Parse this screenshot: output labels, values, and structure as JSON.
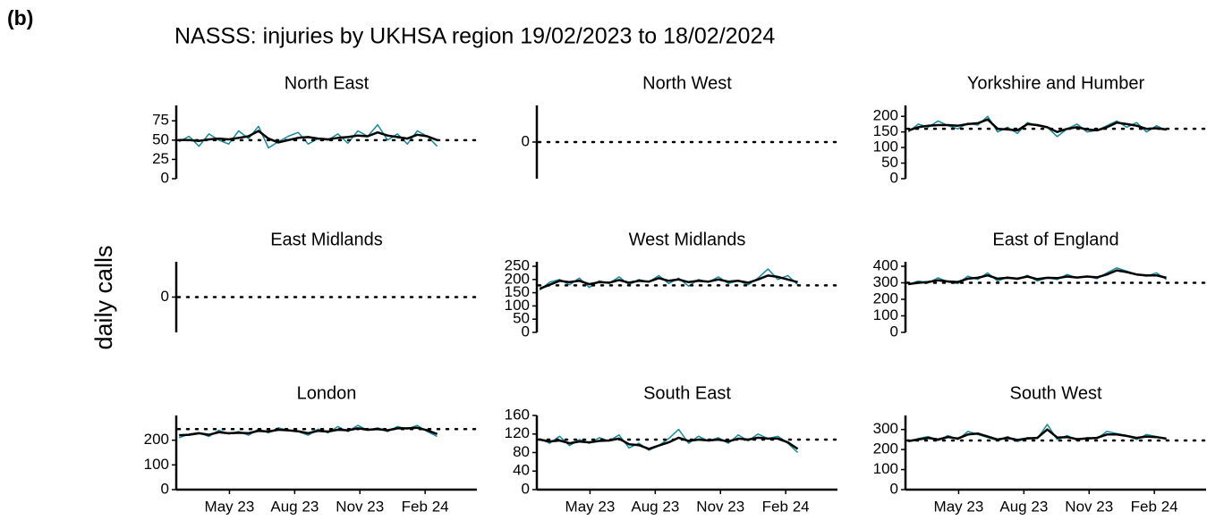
{
  "panel_label": "(b)",
  "title": "NASSS: injuries by UKHSA region 19/02/2023 to 18/02/2024",
  "y_label": "daily calls",
  "x": [
    0,
    14,
    28,
    42,
    56,
    70,
    84,
    98,
    112,
    126,
    140,
    154,
    168,
    182,
    196,
    210,
    224,
    238,
    252,
    266,
    280,
    294,
    308,
    322,
    336,
    350,
    364
  ],
  "xlim": [
    -4,
    420
  ],
  "xticks": [
    {
      "value": 71,
      "label": "May 23"
    },
    {
      "value": 163,
      "label": "Aug 23"
    },
    {
      "value": 255,
      "label": "Nov 23"
    },
    {
      "value": 347,
      "label": "Feb 24"
    }
  ],
  "chart_data": [
    {
      "type": "line",
      "title": "North East",
      "ylim": [
        0,
        95
      ],
      "yticks": [
        0,
        25,
        50,
        75
      ],
      "baseline": 50,
      "series": [
        {
          "color": "#1a8799",
          "values": [
            48,
            55,
            42,
            58,
            50,
            45,
            62,
            52,
            68,
            40,
            48,
            55,
            60,
            45,
            52,
            50,
            58,
            46,
            62,
            55,
            70,
            50,
            58,
            45,
            62,
            55,
            42
          ]
        },
        {
          "color": "#000000",
          "values": [
            50,
            50,
            49,
            51,
            52,
            51,
            53,
            55,
            62,
            52,
            47,
            50,
            53,
            54,
            52,
            51,
            53,
            54,
            56,
            55,
            60,
            56,
            54,
            52,
            57,
            55,
            50
          ]
        }
      ]
    },
    {
      "type": "line",
      "title": "North West",
      "ylim": [
        -1,
        1
      ],
      "yticks": [
        0
      ],
      "baseline": 0,
      "series": []
    },
    {
      "type": "line",
      "title": "Yorkshire and Humber",
      "ylim": [
        0,
        235
      ],
      "yticks": [
        0,
        50,
        100,
        150,
        200
      ],
      "baseline": 160,
      "series": [
        {
          "color": "#1a8799",
          "values": [
            150,
            175,
            165,
            185,
            170,
            160,
            178,
            172,
            200,
            150,
            165,
            145,
            180,
            170,
            165,
            135,
            160,
            175,
            150,
            155,
            170,
            185,
            165,
            180,
            150,
            170,
            155
          ]
        },
        {
          "color": "#000000",
          "values": [
            155,
            165,
            170,
            172,
            172,
            170,
            175,
            178,
            190,
            160,
            158,
            155,
            175,
            172,
            165,
            150,
            160,
            165,
            158,
            155,
            165,
            180,
            175,
            170,
            160,
            162,
            158
          ]
        }
      ]
    },
    {
      "type": "line",
      "title": "East Midlands",
      "ylim": [
        -1,
        1
      ],
      "yticks": [
        0
      ],
      "baseline": 0,
      "series": []
    },
    {
      "type": "line",
      "title": "West Midlands",
      "ylim": [
        0,
        267
      ],
      "yticks": [
        0,
        50,
        100,
        150,
        200,
        250
      ],
      "baseline": 178,
      "series": [
        {
          "color": "#1a8799",
          "values": [
            160,
            190,
            200,
            180,
            205,
            170,
            195,
            185,
            210,
            180,
            200,
            190,
            215,
            185,
            205,
            175,
            200,
            190,
            210,
            185,
            195,
            180,
            205,
            240,
            200,
            215,
            180
          ]
        },
        {
          "color": "#000000",
          "values": [
            165,
            180,
            195,
            190,
            195,
            182,
            190,
            188,
            198,
            188,
            195,
            192,
            205,
            195,
            200,
            190,
            195,
            192,
            200,
            192,
            195,
            188,
            200,
            215,
            210,
            200,
            190
          ]
        }
      ]
    },
    {
      "type": "line",
      "title": "East of England",
      "ylim": [
        0,
        427
      ],
      "yticks": [
        0,
        100,
        200,
        300,
        400
      ],
      "baseline": 300,
      "series": [
        {
          "color": "#1a8799",
          "values": [
            290,
            310,
            300,
            330,
            305,
            295,
            340,
            320,
            360,
            310,
            335,
            320,
            345,
            310,
            330,
            320,
            350,
            330,
            340,
            325,
            360,
            390,
            370,
            350,
            340,
            360,
            320
          ]
        },
        {
          "color": "#000000",
          "values": [
            292,
            300,
            305,
            315,
            308,
            305,
            325,
            330,
            345,
            325,
            330,
            325,
            338,
            322,
            330,
            328,
            338,
            332,
            338,
            333,
            350,
            375,
            365,
            350,
            345,
            345,
            330
          ]
        }
      ]
    },
    {
      "type": "line",
      "title": "London",
      "ylim": [
        0,
        300
      ],
      "yticks": [
        0,
        100,
        200
      ],
      "baseline": 245,
      "series": [
        {
          "color": "#1a8799",
          "values": [
            210,
            225,
            230,
            215,
            240,
            225,
            235,
            220,
            245,
            230,
            250,
            240,
            235,
            220,
            245,
            230,
            255,
            235,
            260,
            240,
            250,
            235,
            255,
            245,
            260,
            235,
            215
          ]
        },
        {
          "color": "#000000",
          "values": [
            220,
            222,
            228,
            222,
            232,
            228,
            230,
            228,
            238,
            235,
            242,
            240,
            236,
            228,
            238,
            235,
            242,
            240,
            248,
            242,
            245,
            240,
            248,
            248,
            250,
            240,
            225
          ]
        }
      ]
    },
    {
      "type": "line",
      "title": "South East",
      "ylim": [
        0,
        160
      ],
      "yticks": [
        0,
        40,
        80,
        120,
        160
      ],
      "baseline": 108,
      "series": [
        {
          "color": "#1a8799",
          "values": [
            110,
            100,
            115,
            95,
            108,
            100,
            112,
            105,
            118,
            90,
            100,
            85,
            95,
            110,
            130,
            100,
            115,
            105,
            112,
            100,
            118,
            105,
            120,
            110,
            115,
            100,
            80
          ]
        },
        {
          "color": "#000000",
          "values": [
            108,
            104,
            106,
            100,
            104,
            102,
            105,
            106,
            110,
            98,
            96,
            88,
            95,
            102,
            112,
            105,
            108,
            106,
            108,
            104,
            110,
            108,
            112,
            110,
            110,
            102,
            88
          ]
        }
      ]
    },
    {
      "type": "line",
      "title": "South West",
      "ylim": [
        0,
        370
      ],
      "yticks": [
        0,
        100,
        200,
        300
      ],
      "baseline": 245,
      "series": [
        {
          "color": "#1a8799",
          "values": [
            240,
            255,
            265,
            245,
            270,
            250,
            290,
            275,
            260,
            245,
            265,
            240,
            260,
            255,
            325,
            250,
            270,
            245,
            260,
            255,
            290,
            280,
            270,
            250,
            275,
            265,
            250
          ]
        },
        {
          "color": "#000000",
          "values": [
            242,
            250,
            258,
            250,
            262,
            255,
            275,
            280,
            265,
            250,
            258,
            248,
            255,
            258,
            300,
            260,
            262,
            252,
            255,
            258,
            275,
            275,
            268,
            258,
            265,
            262,
            255
          ]
        }
      ]
    }
  ]
}
